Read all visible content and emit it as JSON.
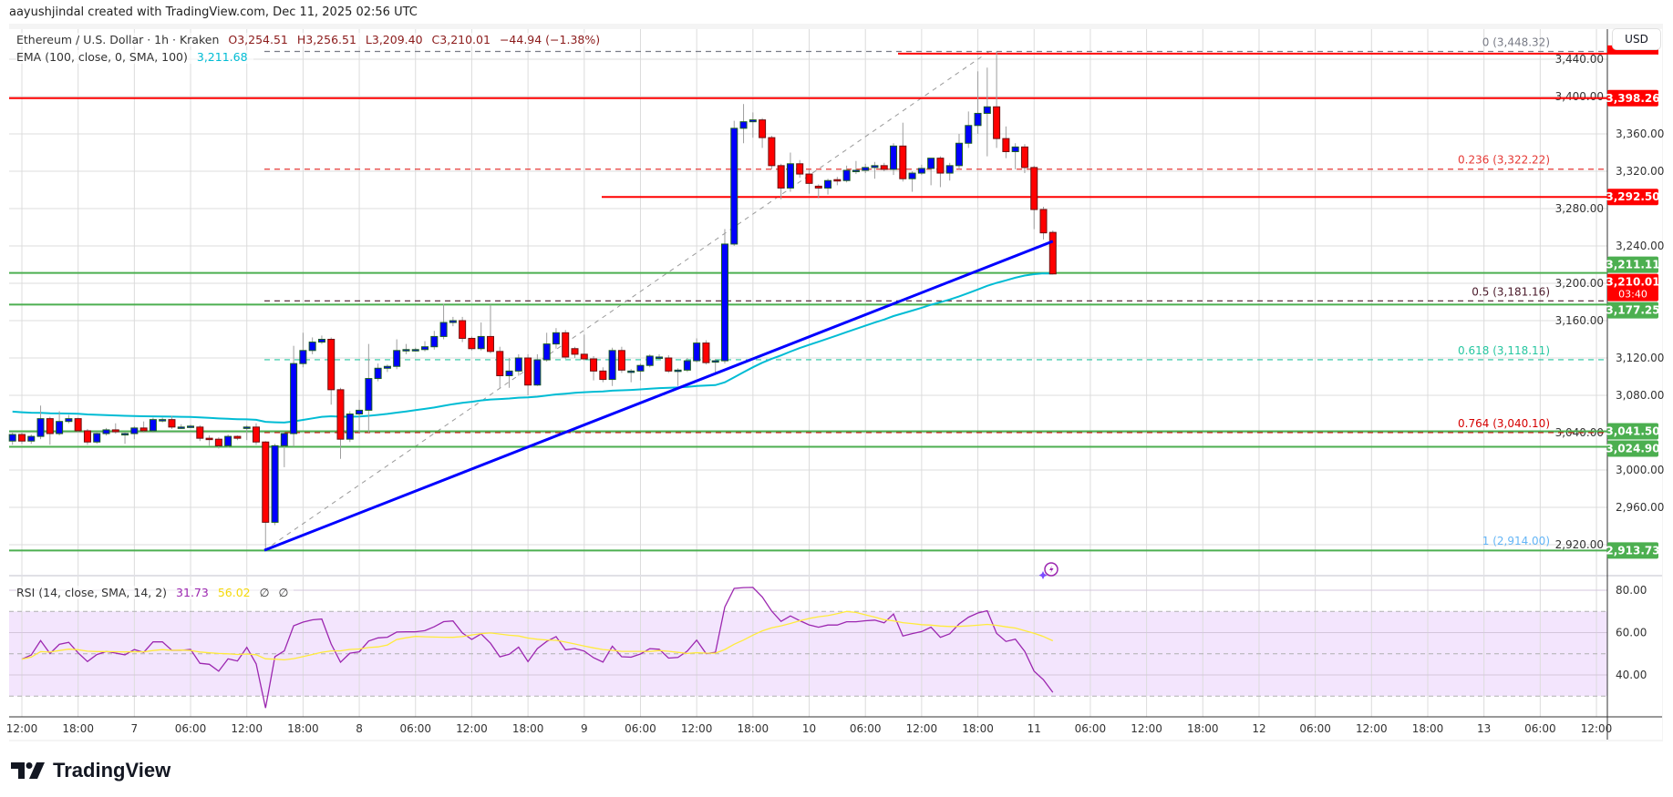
{
  "credit": "aayushjindal created with TradingView.com, Dec 11, 2025 02:56 UTC",
  "legend": {
    "symbol": "Ethereum / U.S. Dollar · 1h · Kraken",
    "open": "O3,254.51",
    "high": "H3,256.51",
    "low": "L3,209.40",
    "close": "C3,210.01",
    "change": "−44.94 (−1.38%)",
    "ema_label": "EMA (100, close, 0, SMA, 100)",
    "ema_value": "3,211.68",
    "rsi_label": "RSI (14, close, SMA, 14, 2)",
    "rsi_value": "31.73",
    "rsi_ma_value": "56.02",
    "rsi_extra1": "∅",
    "rsi_extra2": "∅"
  },
  "currency_button": "USD",
  "brand": "TradingView",
  "colors": {
    "up": "#0000ff",
    "down": "#ff0000",
    "ema": "#00bcd4",
    "rsi": "#9c27b0",
    "rsi_ma": "#ffeb3b",
    "support": "#4caf50",
    "resistance": "#ff0000",
    "trendline": "#0000ff"
  },
  "price_ticks": [
    "3,440.00",
    "3,400.00",
    "3,360.00",
    "3,320.00",
    "3,280.00",
    "3,240.00",
    "3,200.00",
    "3,160.00",
    "3,120.00",
    "3,080.00",
    "3,040.00",
    "3,000.00",
    "2,960.00",
    "2,920.00"
  ],
  "rsi_ticks": [
    "80.00",
    "60.00",
    "40.00"
  ],
  "time_ticks": [
    "12:00",
    "18:00",
    "7",
    "06:00",
    "12:00",
    "18:00",
    "8",
    "06:00",
    "12:00",
    "18:00",
    "9",
    "06:00",
    "12:00",
    "18:00",
    "10",
    "06:00",
    "12:00",
    "18:00",
    "11",
    "06:00",
    "12:00",
    "18:00",
    "12",
    "06:00",
    "12:00",
    "18:00",
    "13",
    "06:00",
    "12:00"
  ],
  "levels": [
    {
      "price": 3398.26,
      "label": "3,398.26",
      "color": "#ff0000",
      "from": "start"
    },
    {
      "price": 3292.5,
      "label": "3,292.50",
      "color": "#ff0000",
      "from": "Dec 9 21:00"
    },
    {
      "price": 3446.0,
      "label": "",
      "color": "#ff0000",
      "from": "Dec 10 20:00"
    },
    {
      "price": 3211.11,
      "label": "3,211.11",
      "color": "#4caf50",
      "from": "start"
    },
    {
      "price": 3177.25,
      "label": "3,177.25",
      "color": "#4caf50",
      "from": "start"
    },
    {
      "price": 3041.5,
      "label": "3,041.50",
      "color": "#4caf50",
      "from": "start"
    },
    {
      "price": 3024.9,
      "label": "3,024.90",
      "color": "#4caf50",
      "from": "start"
    },
    {
      "price": 2913.73,
      "label": "2,913.73",
      "color": "#4caf50",
      "from": "start"
    }
  ],
  "last_price": {
    "label": "3,210.01",
    "countdown": "03:40",
    "color": "#ff0000"
  },
  "fib": [
    {
      "ratio": "0",
      "price": 3448.32,
      "label": "0 (3,448.32)",
      "color": "#787b86"
    },
    {
      "ratio": "0.236",
      "price": 3322.22,
      "label": "0.236 (3,322.22)",
      "color": "#e53935"
    },
    {
      "ratio": "0.5",
      "price": 3181.16,
      "label": "0.5 (3,181.16)",
      "color": "#4a1a2a"
    },
    {
      "ratio": "0.618",
      "price": 3118.11,
      "label": "0.618 (3,118.11)",
      "color": "#26c6a0"
    },
    {
      "ratio": "0.764",
      "price": 3040.1,
      "label": "0.764 (3,040.10)",
      "color": "#d50000"
    },
    {
      "ratio": "1",
      "price": 2914.0,
      "label": "1 (2,914.00)",
      "color": "#64b5f6"
    }
  ],
  "trendline": {
    "start_price": 2914.0,
    "end_price": 3245.0
  },
  "candles": [
    [
      3031,
      3040,
      3027,
      3038
    ],
    [
      3038,
      3040,
      3028,
      3031
    ],
    [
      3031,
      3038,
      3028,
      3036
    ],
    [
      3036,
      3069,
      3033,
      3055
    ],
    [
      3055,
      3057,
      3027,
      3039
    ],
    [
      3039,
      3063,
      3037,
      3052
    ],
    [
      3052,
      3059,
      3050,
      3055
    ],
    [
      3055,
      3056,
      3040,
      3042
    ],
    [
      3042,
      3044,
      3027,
      3030
    ],
    [
      3030,
      3041,
      3028,
      3039
    ],
    [
      3039,
      3045,
      3037,
      3043
    ],
    [
      3043,
      3050,
      3039,
      3041
    ],
    [
      3039,
      3041,
      3028,
      3039
    ],
    [
      3039,
      3047,
      3033,
      3045
    ],
    [
      3045,
      3052,
      3040,
      3042
    ],
    [
      3042,
      3056,
      3040,
      3054
    ],
    [
      3054,
      3056,
      3051,
      3054
    ],
    [
      3054,
      3058,
      3044,
      3046
    ],
    [
      3046,
      3049,
      3044,
      3046
    ],
    [
      3047,
      3049,
      3045,
      3047
    ],
    [
      3046,
      3048,
      3031,
      3034
    ],
    [
      3034,
      3037,
      3026,
      3033
    ],
    [
      3033,
      3035,
      3023,
      3026
    ],
    [
      3026,
      3038,
      3024,
      3036
    ],
    [
      3036,
      3037,
      3032,
      3034
    ],
    [
      3046,
      3048,
      3032,
      3046
    ],
    [
      3046,
      3050,
      3027,
      3030
    ],
    [
      3030,
      3031,
      2914,
      2944
    ],
    [
      2944,
      3028,
      2941,
      3026
    ],
    [
      3026,
      3041,
      3003,
      3039
    ],
    [
      3039,
      3133,
      3025,
      3114
    ],
    [
      3114,
      3147,
      3110,
      3128
    ],
    [
      3128,
      3142,
      3124,
      3137
    ],
    [
      3137,
      3144,
      3135,
      3140
    ],
    [
      3140,
      3142,
      3070,
      3086
    ],
    [
      3086,
      3088,
      3012,
      3033
    ],
    [
      3033,
      3063,
      3030,
      3060
    ],
    [
      3060,
      3075,
      3040,
      3064
    ],
    [
      3064,
      3135,
      3040,
      3098
    ],
    [
      3098,
      3114,
      3095,
      3109
    ],
    [
      3109,
      3113,
      3105,
      3111
    ],
    [
      3111,
      3140,
      3108,
      3128
    ],
    [
      3128,
      3135,
      3124,
      3129
    ],
    [
      3129,
      3131,
      3127,
      3129
    ],
    [
      3129,
      3138,
      3127,
      3132
    ],
    [
      3132,
      3149,
      3129,
      3143
    ],
    [
      3143,
      3178,
      3140,
      3158
    ],
    [
      3158,
      3164,
      3154,
      3160
    ],
    [
      3160,
      3164,
      3137,
      3141
    ],
    [
      3141,
      3143,
      3128,
      3130
    ],
    [
      3130,
      3158,
      3128,
      3143
    ],
    [
      3143,
      3177,
      3125,
      3127
    ],
    [
      3127,
      3132,
      3088,
      3101
    ],
    [
      3101,
      3120,
      3088,
      3106
    ],
    [
      3106,
      3124,
      3101,
      3120
    ],
    [
      3120,
      3124,
      3080,
      3091
    ],
    [
      3091,
      3124,
      3090,
      3118
    ],
    [
      3118,
      3147,
      3116,
      3135
    ],
    [
      3135,
      3152,
      3130,
      3147
    ],
    [
      3147,
      3150,
      3119,
      3121
    ],
    [
      3130,
      3132,
      3120,
      3124
    ],
    [
      3124,
      3145,
      3117,
      3119
    ],
    [
      3119,
      3122,
      3096,
      3106
    ],
    [
      3106,
      3110,
      3094,
      3097
    ],
    [
      3097,
      3131,
      3090,
      3128
    ],
    [
      3128,
      3132,
      3104,
      3107
    ],
    [
      3106,
      3108,
      3094,
      3106
    ],
    [
      3106,
      3114,
      3096,
      3112
    ],
    [
      3112,
      3124,
      3110,
      3122
    ],
    [
      3121,
      3124,
      3118,
      3121
    ],
    [
      3120,
      3123,
      3104,
      3106
    ],
    [
      3107,
      3109,
      3090,
      3107
    ],
    [
      3107,
      3120,
      3105,
      3117
    ],
    [
      3117,
      3141,
      3115,
      3136
    ],
    [
      3136,
      3139,
      3113,
      3115
    ],
    [
      3116,
      3119,
      3103,
      3117
    ],
    [
      3117,
      3258,
      3114,
      3242
    ],
    [
      3242,
      3374,
      3240,
      3366
    ],
    [
      3366,
      3392,
      3350,
      3373
    ],
    [
      3373,
      3383,
      3356,
      3375
    ],
    [
      3375,
      3377,
      3345,
      3356
    ],
    [
      3356,
      3358,
      3322,
      3326
    ],
    [
      3326,
      3328,
      3290,
      3302
    ],
    [
      3302,
      3340,
      3298,
      3328
    ],
    [
      3328,
      3332,
      3313,
      3317
    ],
    [
      3317,
      3322,
      3296,
      3307
    ],
    [
      3304,
      3306,
      3291,
      3302
    ],
    [
      3302,
      3312,
      3295,
      3310
    ],
    [
      3311,
      3314,
      3305,
      3310
    ],
    [
      3310,
      3326,
      3308,
      3321
    ],
    [
      3321,
      3331,
      3317,
      3321
    ],
    [
      3321,
      3328,
      3318,
      3324
    ],
    [
      3324,
      3330,
      3312,
      3326
    ],
    [
      3326,
      3329,
      3320,
      3322
    ],
    [
      3322,
      3350,
      3316,
      3347
    ],
    [
      3347,
      3372,
      3309,
      3312
    ],
    [
      3312,
      3320,
      3298,
      3318
    ],
    [
      3318,
      3327,
      3316,
      3323
    ],
    [
      3323,
      3334,
      3305,
      3334
    ],
    [
      3334,
      3336,
      3303,
      3318
    ],
    [
      3318,
      3329,
      3310,
      3326
    ],
    [
      3326,
      3360,
      3322,
      3350
    ],
    [
      3350,
      3384,
      3345,
      3369
    ],
    [
      3369,
      3427,
      3360,
      3382
    ],
    [
      3382,
      3431,
      3336,
      3389
    ],
    [
      3389,
      3448,
      3345,
      3355
    ],
    [
      3355,
      3368,
      3334,
      3341
    ],
    [
      3341,
      3350,
      3322,
      3346
    ],
    [
      3346,
      3349,
      3318,
      3324
    ],
    [
      3324,
      3326,
      3258,
      3279
    ],
    [
      3279,
      3282,
      3247,
      3254
    ],
    [
      3254.51,
      3256.51,
      3209.4,
      3210.01
    ]
  ]
}
